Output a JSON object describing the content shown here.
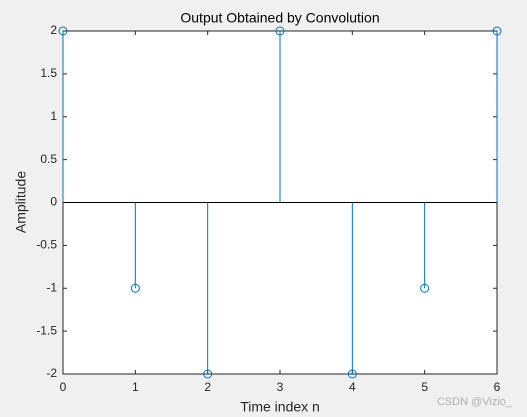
{
  "chart_data": {
    "type": "stem",
    "title": "Output Obtained by Convolution",
    "x_label": "Time index n",
    "y_label": "Amplitude",
    "x": [
      0,
      1,
      2,
      3,
      4,
      5,
      6
    ],
    "values": [
      2,
      -1,
      -2,
      2,
      -2,
      -1,
      2
    ],
    "color": "#0072bd",
    "xlim": [
      0,
      6
    ],
    "xticks": [
      0,
      1,
      2,
      3,
      4,
      5,
      6
    ],
    "ylim": [
      -2,
      2
    ],
    "yticks": [
      -2,
      -1.5,
      -1,
      -0.5,
      0,
      0.5,
      1,
      1.5,
      2
    ],
    "grid": false,
    "baseline": 0
  },
  "watermark": "CSDN @Vizio_"
}
